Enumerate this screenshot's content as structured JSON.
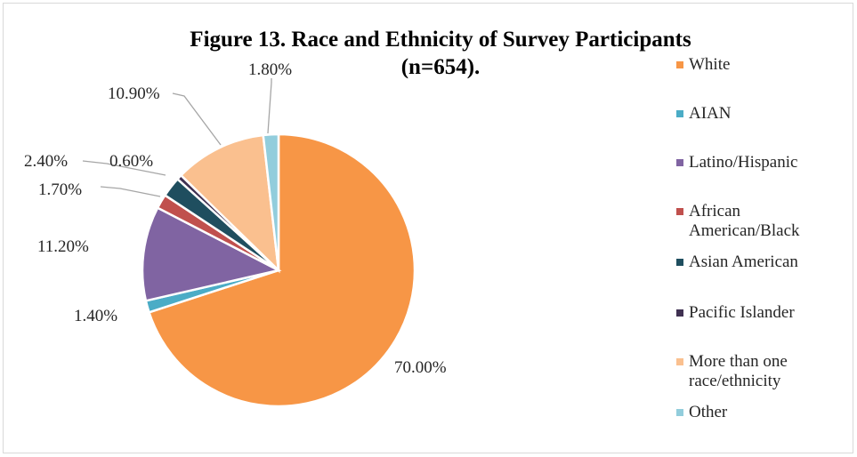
{
  "chart_data": {
    "type": "pie",
    "title_line1": "Figure 13. Race and Ethnicity of Survey Participants",
    "title_line2": "(n=654).",
    "series": [
      {
        "name": "White",
        "value": 70.0,
        "label": "70.00%",
        "color": "#F79646"
      },
      {
        "name": "AIAN",
        "value": 1.4,
        "label": "1.40%",
        "color": "#4BACC6"
      },
      {
        "name": "Latino/Hispanic",
        "value": 11.2,
        "label": "11.20%",
        "color": "#8064A2"
      },
      {
        "name": "African American/Black",
        "value": 1.7,
        "label": "1.70%",
        "color": "#C0504D"
      },
      {
        "name": "Asian American",
        "value": 2.4,
        "label": "2.40%",
        "color": "#1F4E5F"
      },
      {
        "name": "Pacific Islander",
        "value": 0.6,
        "label": "0.60%",
        "color": "#403152"
      },
      {
        "name": "More than one race/ethnicity",
        "value": 10.9,
        "label": "10.90%",
        "color": "#FAC08F"
      },
      {
        "name": "Other",
        "value": 1.8,
        "label": "1.80%",
        "color": "#92CDDC"
      }
    ],
    "legend_position": "right"
  },
  "legend": {
    "items": [
      {
        "lines": [
          "White"
        ],
        "color": "#F79646"
      },
      {
        "lines": [
          "AIAN"
        ],
        "color": "#4BACC6"
      },
      {
        "lines": [
          "Latino/Hispanic"
        ],
        "color": "#8064A2"
      },
      {
        "lines": [
          "African",
          "American/Black"
        ],
        "color": "#C0504D"
      },
      {
        "lines": [
          "Asian American"
        ],
        "color": "#1F4E5F"
      },
      {
        "lines": [
          "Pacific Islander"
        ],
        "color": "#403152"
      },
      {
        "lines": [
          "More than one",
          "race/ethnicity"
        ],
        "color": "#FAC08F"
      },
      {
        "lines": [
          "Other"
        ],
        "color": "#92CDDC"
      }
    ]
  }
}
